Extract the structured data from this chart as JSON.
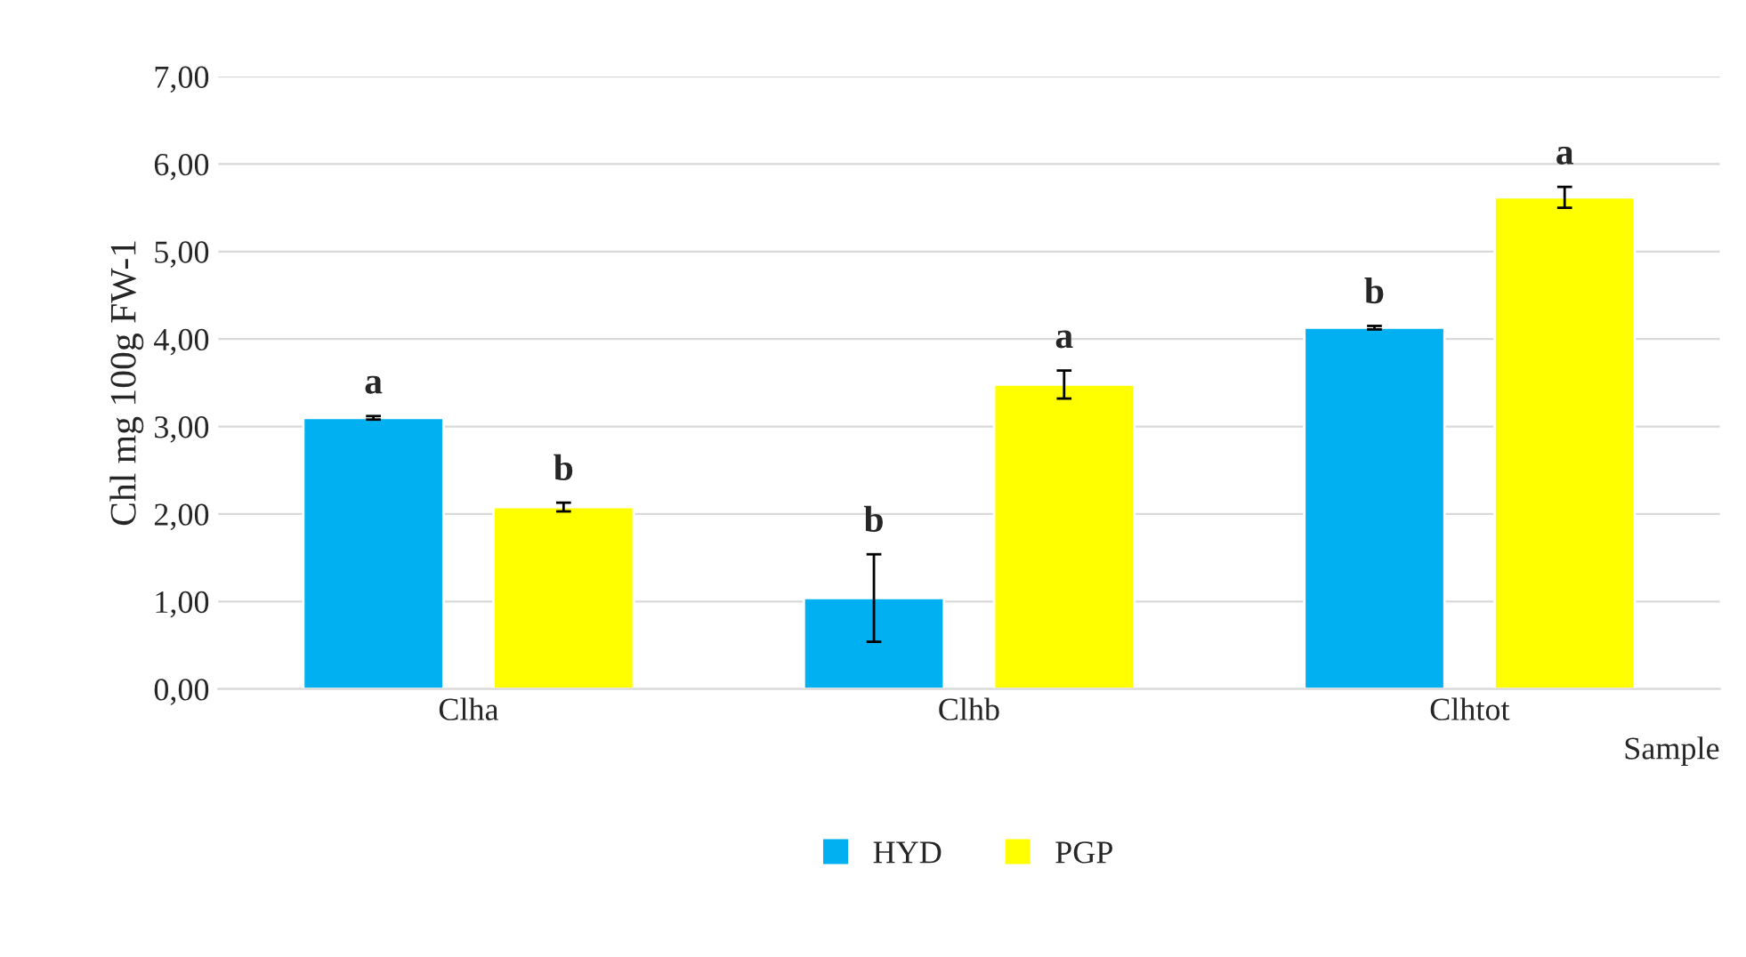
{
  "chart_data": {
    "type": "bar",
    "categories": [
      "Clha",
      "Clhb",
      "Clhtot"
    ],
    "series": [
      {
        "name": "HYD",
        "color": "#00b0f0",
        "values": [
          3.1,
          1.04,
          4.13
        ],
        "errors": [
          0.02,
          0.5,
          0.02
        ],
        "value_labels": [
          "a",
          "b",
          "b"
        ]
      },
      {
        "name": "PGP",
        "color": "#ffff00",
        "values": [
          2.08,
          3.48,
          5.62
        ],
        "errors": [
          0.05,
          0.16,
          0.12
        ],
        "value_labels": [
          "b",
          "a",
          "a"
        ]
      }
    ],
    "xlabel": "Sample",
    "ylabel": "Chl mg 100g FW-1",
    "ylim": [
      0,
      7
    ],
    "yticks": [
      {
        "value": 0,
        "label": "0,00"
      },
      {
        "value": 1,
        "label": "1,00"
      },
      {
        "value": 2,
        "label": "2,00"
      },
      {
        "value": 3,
        "label": "3,00"
      },
      {
        "value": 4,
        "label": "4,00"
      },
      {
        "value": 5,
        "label": "5,00"
      },
      {
        "value": 6,
        "label": "6,00"
      },
      {
        "value": 7,
        "label": "7,00"
      }
    ],
    "grid": "y",
    "legend": "bottom"
  }
}
